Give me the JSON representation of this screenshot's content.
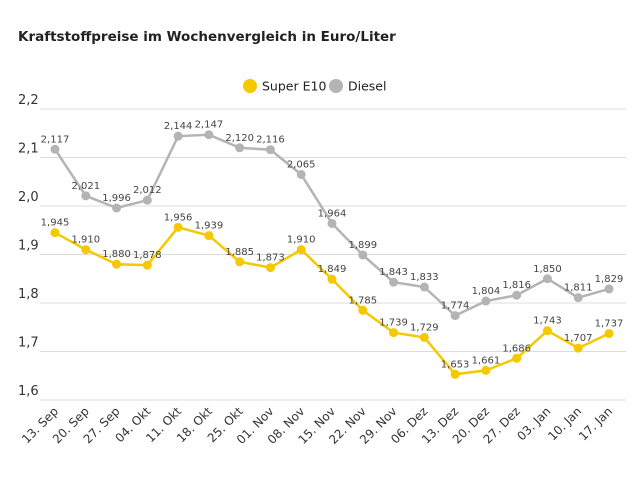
{
  "chart_data": {
    "type": "line",
    "title": "Kraftstoffpreise im Wochenvergleich in Euro/Liter",
    "categories": [
      "13. Sep",
      "20. Sep",
      "27. Sep",
      "04. Okt",
      "11. Okt",
      "18. Okt",
      "25. Okt",
      "01. Nov",
      "08. Nov",
      "15. Nov",
      "22. Nov",
      "29. Nov",
      "06. Dez",
      "13. Dez",
      "20. Dez",
      "27. Dez",
      "03. Jan",
      "10. Jan",
      "17. Jan"
    ],
    "series": [
      {
        "name": "Super E10",
        "color": "#f5c800",
        "values": [
          1.945,
          1.91,
          1.88,
          1.878,
          1.956,
          1.939,
          1.885,
          1.873,
          1.91,
          1.849,
          1.785,
          1.739,
          1.729,
          1.653,
          1.661,
          1.686,
          1.743,
          1.707,
          1.737
        ]
      },
      {
        "name": "Diesel",
        "color": "#b4b4b4",
        "values": [
          2.117,
          2.021,
          1.996,
          2.012,
          2.144,
          2.147,
          2.12,
          2.116,
          2.065,
          1.964,
          1.899,
          1.843,
          1.833,
          1.774,
          1.804,
          1.816,
          1.85,
          1.811,
          1.829
        ]
      }
    ],
    "ylim": [
      1.6,
      2.2
    ],
    "yticks": [
      "1,6",
      "1,7",
      "1,8",
      "1,9",
      "2,0",
      "2,1",
      "2,2"
    ],
    "decimal_separator": ",",
    "grid": true,
    "legend": "top-center"
  }
}
